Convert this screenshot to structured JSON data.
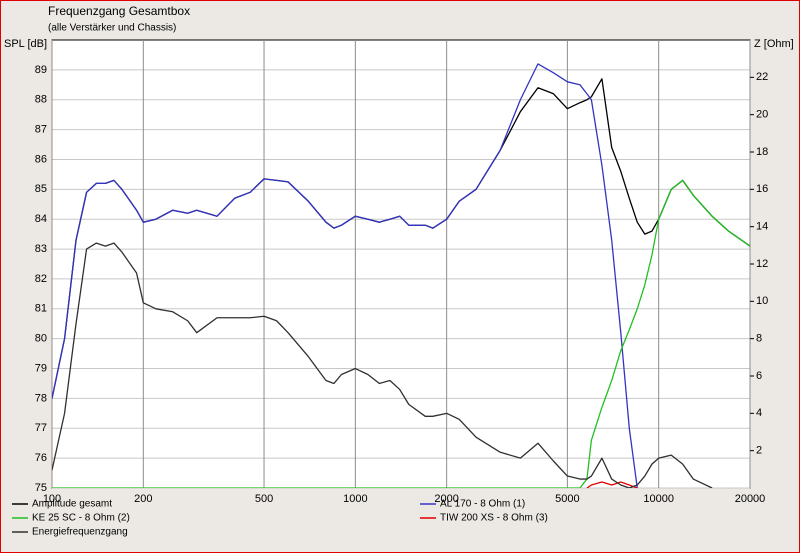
{
  "chart_data": {
    "type": "line",
    "title": "Frequenzgang Gesamtbox",
    "subtitle": "(alle Verstärker und Chassis)",
    "ylabel": "SPL [dB]",
    "y2label": "Z [Ohm]",
    "xscale": "log",
    "grid": true,
    "xlim": [
      100,
      20000
    ],
    "xticks": [
      100,
      200,
      500,
      1000,
      2000,
      5000,
      10000,
      20000
    ],
    "ylim": [
      75,
      90
    ],
    "yticks": [
      75,
      76,
      77,
      78,
      79,
      80,
      81,
      82,
      83,
      84,
      85,
      86,
      87,
      88,
      89
    ],
    "y2lim": [
      0,
      24
    ],
    "y2ticks": [
      2,
      4,
      6,
      8,
      10,
      12,
      14,
      16,
      18,
      20,
      22
    ],
    "legend": "bottom",
    "x": [
      100,
      110,
      120,
      130,
      140,
      150,
      160,
      170,
      190,
      200,
      220,
      250,
      280,
      300,
      350,
      400,
      450,
      500,
      550,
      600,
      700,
      800,
      850,
      900,
      1000,
      1100,
      1200,
      1300,
      1400,
      1500,
      1700,
      1800,
      2000,
      2200,
      2500,
      3000,
      3500,
      4000,
      4500,
      5000,
      5500,
      5800,
      6000,
      6500,
      7000,
      7500,
      8000,
      8500,
      9000,
      9500,
      10000,
      11000,
      12000,
      13000,
      15000,
      17000,
      20000
    ],
    "series": [
      {
        "name": "Amplitude gesamt",
        "color": "#000000",
        "values": [
          78.0,
          80.0,
          83.3,
          84.9,
          85.2,
          85.2,
          85.3,
          85.0,
          84.3,
          83.9,
          84.0,
          84.3,
          84.2,
          84.3,
          84.1,
          84.7,
          84.9,
          85.35,
          85.3,
          85.25,
          84.6,
          83.9,
          83.7,
          83.8,
          84.1,
          84.0,
          83.9,
          84.0,
          84.1,
          83.8,
          83.8,
          83.7,
          84.0,
          84.6,
          85.0,
          86.3,
          87.6,
          88.4,
          88.2,
          87.7,
          87.9,
          88.0,
          88.1,
          88.7,
          86.4,
          85.6,
          84.7,
          83.9,
          83.5,
          83.6,
          84.0,
          85.0,
          85.3,
          84.8,
          84.1,
          83.6,
          83.1
        ]
      },
      {
        "name": "AL 170 - 8 Ohm (1)",
        "color": "#3434c4",
        "values": [
          78.0,
          80.0,
          83.3,
          84.9,
          85.2,
          85.2,
          85.3,
          85.0,
          84.3,
          83.9,
          84.0,
          84.3,
          84.2,
          84.3,
          84.1,
          84.7,
          84.9,
          85.35,
          85.3,
          85.25,
          84.6,
          83.9,
          83.7,
          83.8,
          84.1,
          84.0,
          83.9,
          84.0,
          84.1,
          83.8,
          83.8,
          83.7,
          84.0,
          84.6,
          85.0,
          86.3,
          88.0,
          89.2,
          88.9,
          88.6,
          88.5,
          88.2,
          88.0,
          85.8,
          83.3,
          80.2,
          77.0,
          75.0,
          null,
          null,
          null,
          null,
          null,
          null,
          null,
          null,
          null
        ]
      },
      {
        "name": "KE 25 SC - 8 Ohm    (2)",
        "color": "#22c022",
        "values": [
          75,
          75,
          75,
          75,
          75,
          75,
          75,
          75,
          75,
          75,
          75,
          75,
          75,
          75,
          75,
          75,
          75,
          75,
          75,
          75,
          75,
          75,
          75,
          75,
          75,
          75,
          75,
          75,
          75,
          75,
          75,
          75,
          75,
          75,
          75,
          75,
          75,
          75,
          75,
          75,
          75,
          75.3,
          76.6,
          77.7,
          78.6,
          79.6,
          80.3,
          81.0,
          81.8,
          82.8,
          84.0,
          85.0,
          85.3,
          84.8,
          84.1,
          83.6,
          83.1
        ]
      },
      {
        "name": "TIW 200 XS - 8 Ohm (3)",
        "color": "#e00000",
        "values": [
          null,
          null,
          null,
          null,
          null,
          null,
          null,
          null,
          null,
          null,
          null,
          null,
          null,
          null,
          null,
          null,
          null,
          null,
          null,
          null,
          null,
          null,
          null,
          null,
          null,
          null,
          null,
          null,
          null,
          null,
          null,
          null,
          null,
          null,
          null,
          null,
          null,
          null,
          null,
          null,
          null,
          75.0,
          75.1,
          75.2,
          75.1,
          75.2,
          75.1,
          75.0,
          null,
          null,
          null,
          null,
          null,
          null,
          null,
          null,
          null
        ]
      },
      {
        "name": "Energiefrequenzgang",
        "color": "#303030",
        "values": [
          75.6,
          77.5,
          80.5,
          83.0,
          83.2,
          83.1,
          83.2,
          82.9,
          82.2,
          81.2,
          81.0,
          80.9,
          80.6,
          80.2,
          80.7,
          80.7,
          80.7,
          80.75,
          80.6,
          80.2,
          79.4,
          78.6,
          78.5,
          78.8,
          79.0,
          78.8,
          78.5,
          78.6,
          78.3,
          77.8,
          77.4,
          77.4,
          77.5,
          77.3,
          76.7,
          76.2,
          76.0,
          76.5,
          75.9,
          75.4,
          75.3,
          75.3,
          75.4,
          76.0,
          75.3,
          75.1,
          75.0,
          75.1,
          75.4,
          75.8,
          76.0,
          76.1,
          75.8,
          75.3,
          75.0,
          null,
          null
        ]
      }
    ]
  }
}
